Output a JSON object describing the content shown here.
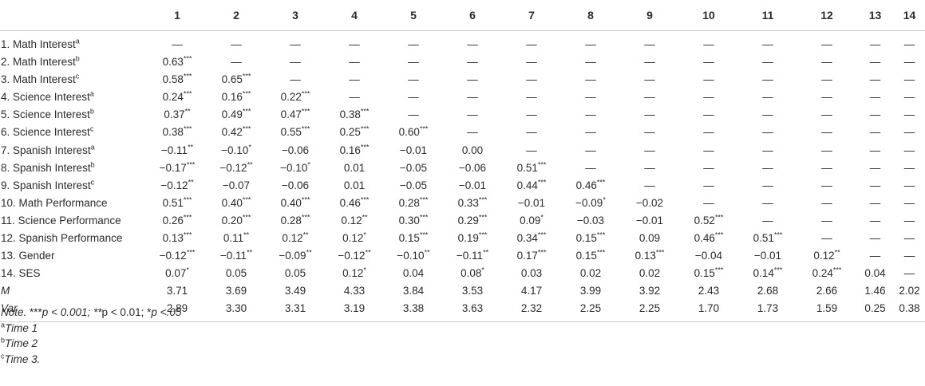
{
  "table": {
    "columns": [
      "1",
      "2",
      "3",
      "4",
      "5",
      "6",
      "7",
      "8",
      "9",
      "10",
      "11",
      "12",
      "13",
      "14"
    ],
    "rows": [
      {
        "label": "1. Math Interest",
        "sup": "a",
        "italic": false,
        "cells": [
          "—",
          "—",
          "—",
          "—",
          "—",
          "—",
          "—",
          "—",
          "—",
          "—",
          "—",
          "—",
          "—",
          "—"
        ]
      },
      {
        "label": "2. Math Interest",
        "sup": "b",
        "italic": false,
        "cells": [
          "0.63***",
          "—",
          "—",
          "—",
          "—",
          "—",
          "—",
          "—",
          "—",
          "—",
          "—",
          "—",
          "—",
          "—"
        ]
      },
      {
        "label": "3. Math Interest",
        "sup": "c",
        "italic": false,
        "cells": [
          "0.58***",
          "0.65***",
          "—",
          "—",
          "—",
          "—",
          "—",
          "—",
          "—",
          "—",
          "—",
          "—",
          "—",
          "—"
        ]
      },
      {
        "label": "4. Science Interest",
        "sup": "a",
        "italic": false,
        "cells": [
          "0.24***",
          "0.16***",
          "0.22***",
          "—",
          "—",
          "—",
          "—",
          "—",
          "—",
          "—",
          "—",
          "—",
          "—",
          "—"
        ]
      },
      {
        "label": "5. Science Interest",
        "sup": "b",
        "italic": false,
        "cells": [
          "0.37**",
          "0.49***",
          "0.47***",
          "0.38***",
          "—",
          "—",
          "—",
          "—",
          "—",
          "—",
          "—",
          "—",
          "—",
          "—"
        ]
      },
      {
        "label": "6. Science Interest",
        "sup": "c",
        "italic": false,
        "cells": [
          "0.38***",
          "0.42***",
          "0.55***",
          "0.25***",
          "0.60***",
          "—",
          "—",
          "—",
          "—",
          "—",
          "—",
          "—",
          "—",
          "—"
        ]
      },
      {
        "label": "7. Spanish Interest",
        "sup": "a",
        "italic": false,
        "cells": [
          "−0.11**",
          "−0.10*",
          "−0.06",
          "0.16***",
          "−0.01",
          "0.00",
          "—",
          "—",
          "—",
          "—",
          "—",
          "—",
          "—",
          "—"
        ]
      },
      {
        "label": "8. Spanish Interest",
        "sup": "b",
        "italic": false,
        "cells": [
          "−0.17***",
          "−0.12**",
          "−0.10*",
          "0.01",
          "−0.05",
          "−0.06",
          "0.51***",
          "—",
          "—",
          "—",
          "—",
          "—",
          "—",
          "—"
        ]
      },
      {
        "label": "9. Spanish Interest",
        "sup": "c",
        "italic": false,
        "cells": [
          "−0.12**",
          "−0.07",
          "−0.06",
          "0.01",
          "−0.05",
          "−0.01",
          "0.44***",
          "0.46***",
          "—",
          "—",
          "—",
          "—",
          "—",
          "—"
        ]
      },
      {
        "label": "10. Math Performance",
        "sup": "",
        "italic": false,
        "cells": [
          "0.51***",
          "0.40***",
          "0.40***",
          "0.46***",
          "0.28***",
          "0.33***",
          "−0.01",
          "−0.09*",
          "−0.02",
          "—",
          "—",
          "—",
          "—",
          "—"
        ]
      },
      {
        "label": "11. Science Performance",
        "sup": "",
        "italic": false,
        "cells": [
          "0.26***",
          "0.20***",
          "0.28***",
          "0.12**",
          "0.30***",
          "0.29***",
          "0.09*",
          "−0.03",
          "−0.01",
          "0.52***",
          "—",
          "—",
          "—",
          "—"
        ]
      },
      {
        "label": "12. Spanish Performance",
        "sup": "",
        "italic": false,
        "cells": [
          "0.13***",
          "0.11**",
          "0.12**",
          "0.12*",
          "0.15***",
          "0.19***",
          "0.34***",
          "0.15***",
          "0.09",
          "0.46***",
          "0.51***",
          "—",
          "—",
          "—"
        ]
      },
      {
        "label": "13. Gender",
        "sup": "",
        "italic": false,
        "cells": [
          "−0.12***",
          "−0.11**",
          "−0.09**",
          "−0.12**",
          "−0.10**",
          "−0.11**",
          "0.17***",
          "0.15***",
          "0.13***",
          "−0.04",
          "−0.01",
          "0.12**",
          "—",
          "—"
        ]
      },
      {
        "label": "14. SES",
        "sup": "",
        "italic": false,
        "cells": [
          "0.07*",
          "0.05",
          "0.05",
          "0.12*",
          "0.04",
          "0.08*",
          "0.03",
          "0.02",
          "0.02",
          "0.15***",
          "0.14***",
          "0.24***",
          "0.04",
          "—"
        ]
      },
      {
        "label": "M",
        "sup": "",
        "italic": true,
        "cells": [
          "3.71",
          "3.69",
          "3.49",
          "4.33",
          "3.84",
          "3.53",
          "4.17",
          "3.99",
          "3.92",
          "2.43",
          "2.68",
          "2.66",
          "1.46",
          "2.02"
        ]
      },
      {
        "label": "Var",
        "sup": "",
        "italic": true,
        "cells": [
          "2.89",
          "3.30",
          "3.31",
          "3.19",
          "3.38",
          "3.63",
          "2.32",
          "2.25",
          "2.25",
          "1.70",
          "1.73",
          "1.59",
          "0.25",
          "0.38"
        ]
      }
    ]
  },
  "notes": {
    "note_prefix": "Note.",
    "note_text_1": " ***",
    "note_text_2": "p < 0.001; **",
    "note_text_3": "p < 0.01; *",
    "note_text_4": "p <.05",
    "footnotes": [
      {
        "sup": "a",
        "text": "Time 1"
      },
      {
        "sup": "b",
        "text": "Time 2"
      },
      {
        "sup": "c",
        "text": "Time 3."
      }
    ]
  }
}
